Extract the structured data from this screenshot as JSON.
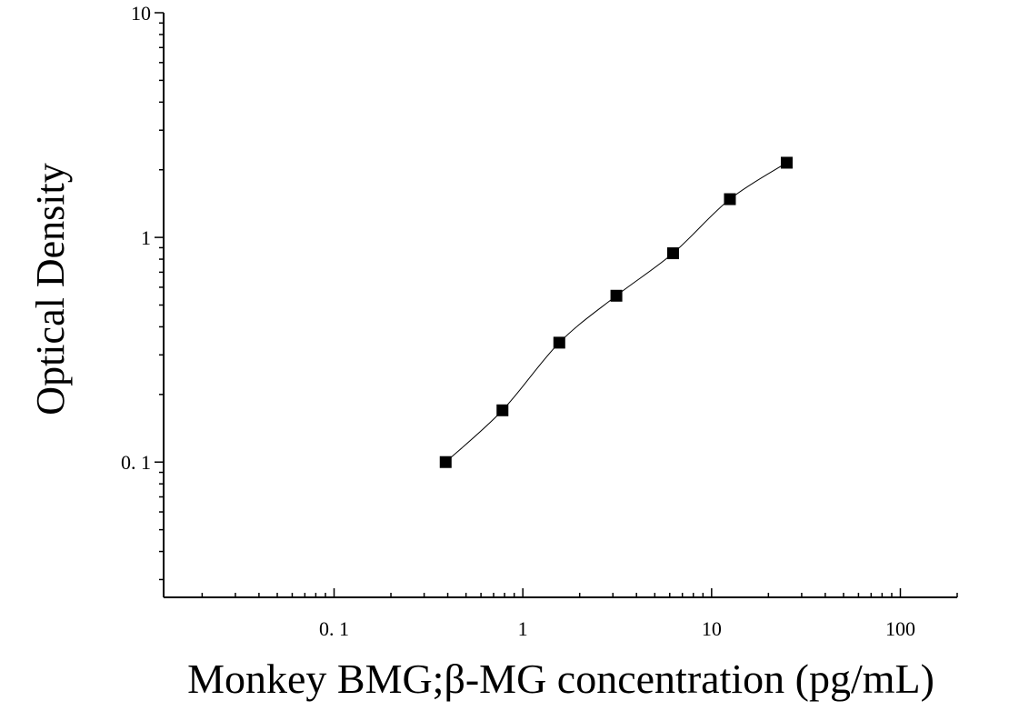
{
  "chart_data": {
    "type": "scatter",
    "title": "",
    "xlabel": "Monkey BMG;β-MG concentration (pg/mL)",
    "ylabel": "Optical Density",
    "xscale": "log",
    "yscale": "log",
    "xlim": [
      0.0125,
      200
    ],
    "ylim": [
      0.025,
      10
    ],
    "grid": false,
    "legend": "none",
    "x_ticks": [
      {
        "value": 0.1,
        "label": "0. 1"
      },
      {
        "value": 1,
        "label": "1"
      },
      {
        "value": 10,
        "label": "10"
      },
      {
        "value": 100,
        "label": "100"
      }
    ],
    "y_ticks": [
      {
        "value": 0.1,
        "label": "0. 1"
      },
      {
        "value": 1,
        "label": "1"
      },
      {
        "value": 10,
        "label": "10"
      }
    ],
    "series": [
      {
        "x": [
          0.39,
          0.78,
          1.56,
          3.13,
          6.25,
          12.5,
          25
        ],
        "y": [
          0.1,
          0.17,
          0.34,
          0.55,
          0.85,
          1.48,
          2.15
        ],
        "marker": "square",
        "fit": "smooth-curve"
      }
    ],
    "colors": {
      "marker": "#000000",
      "line": "#000000",
      "axis": "#000000"
    }
  }
}
